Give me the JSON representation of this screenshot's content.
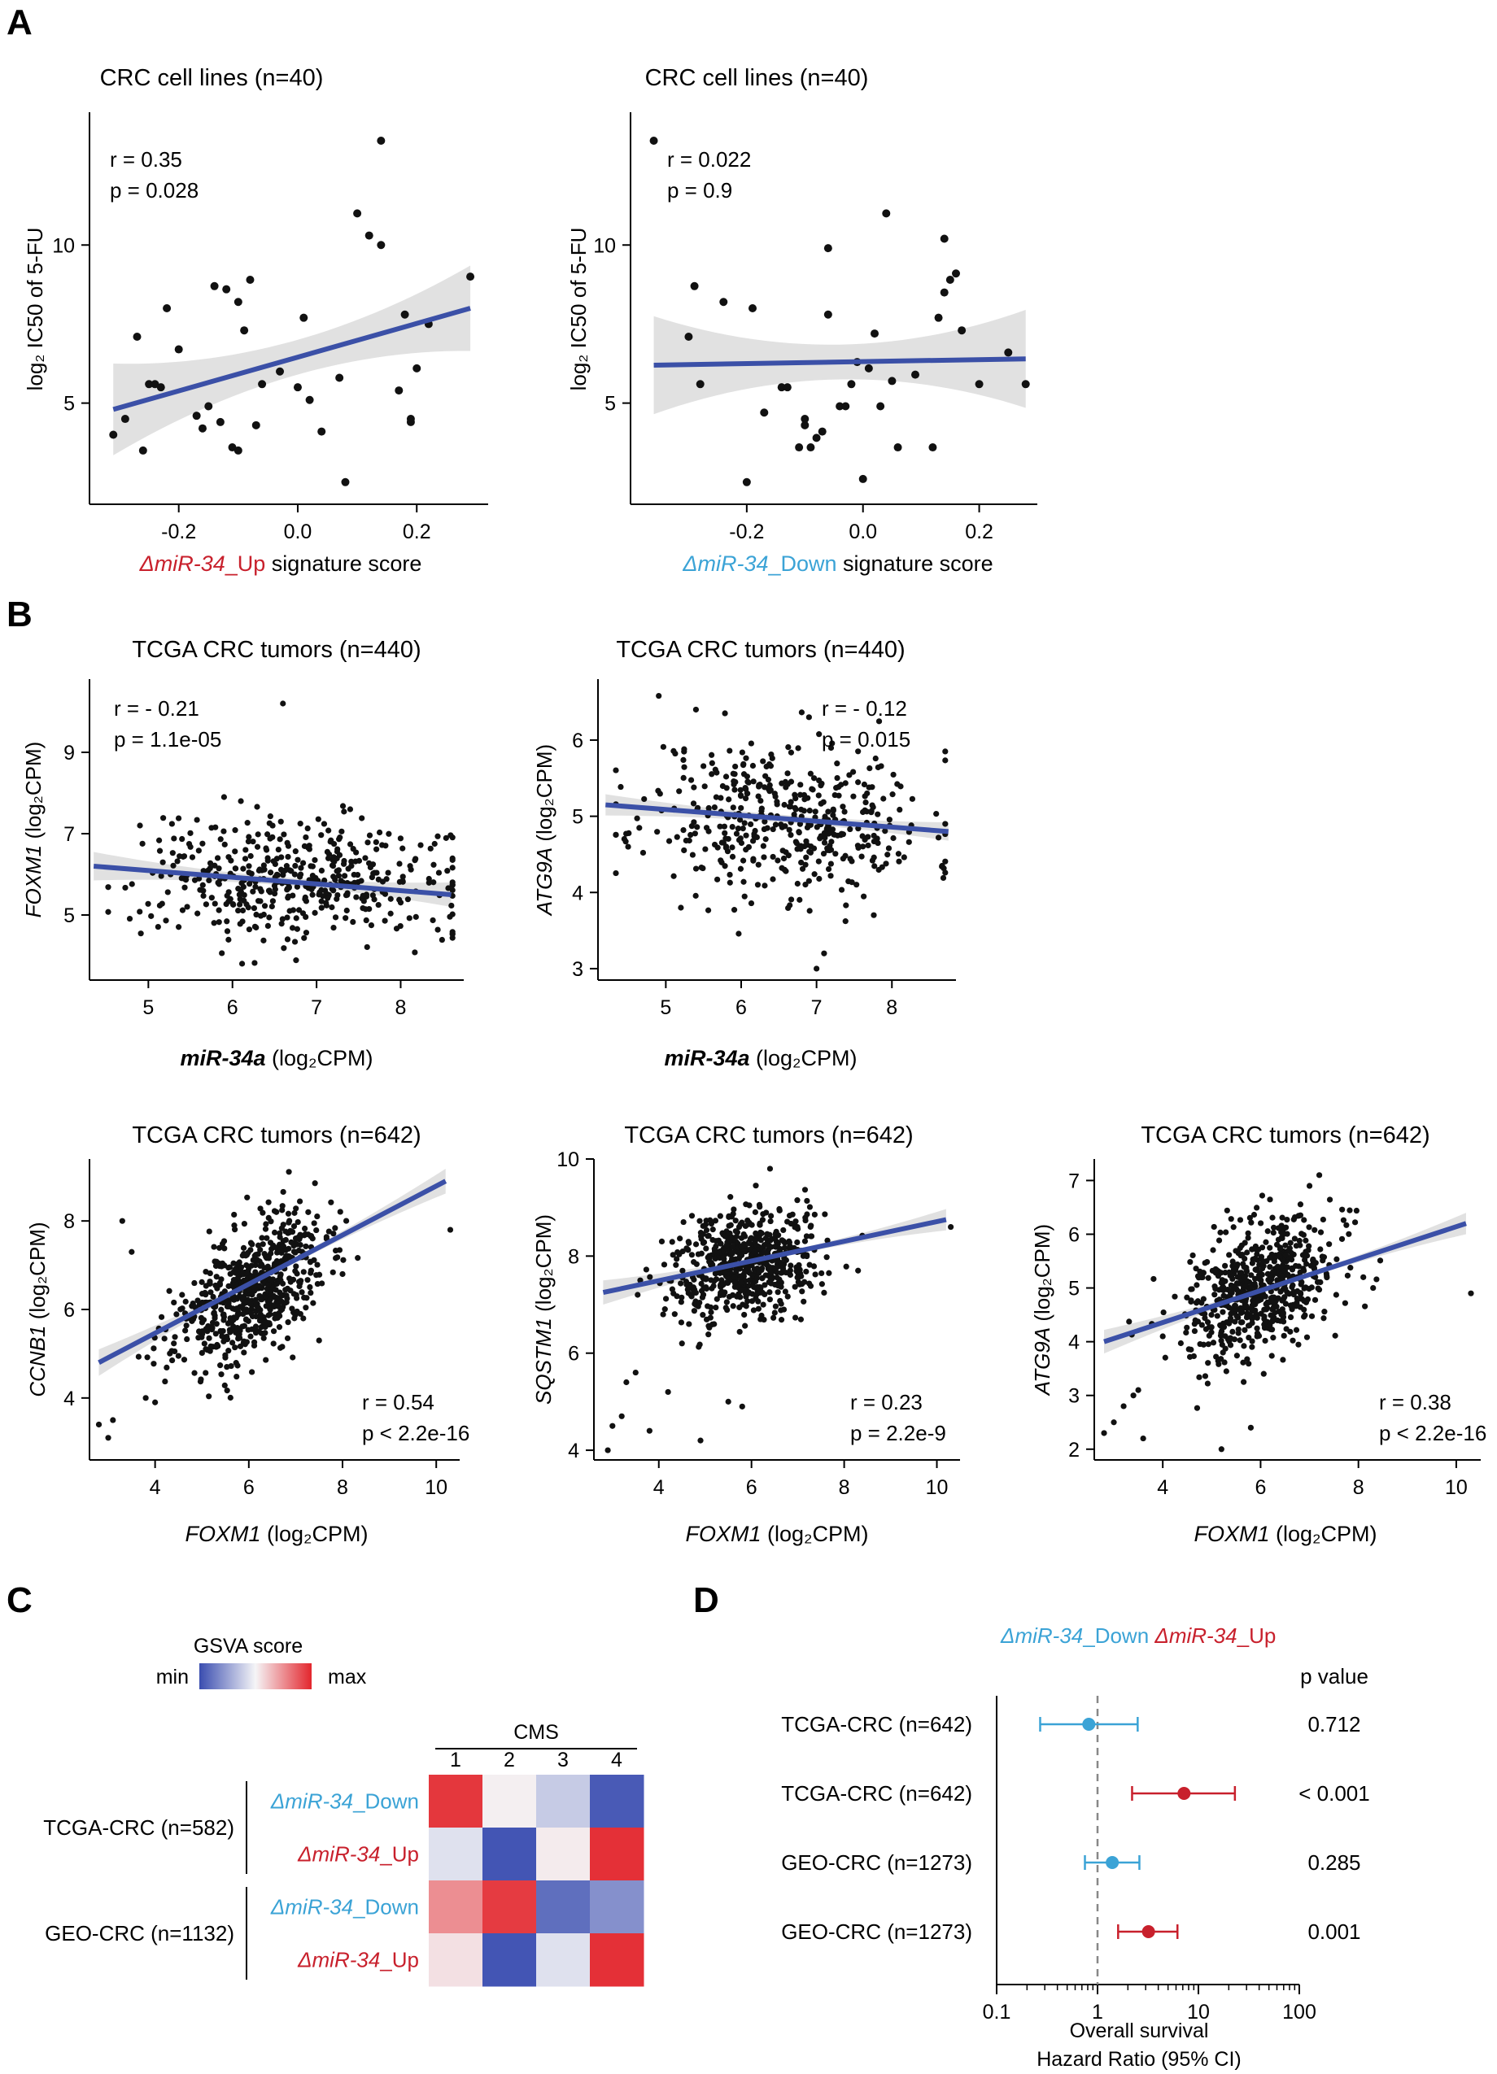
{
  "colors": {
    "line": "#3b50a7",
    "band": "#d7d7d7",
    "point": "#111111",
    "up": "#c8202c",
    "down": "#3ba3d6",
    "dash": "#888888",
    "hm_min": "#3a4db0",
    "hm_mid": "#f5f5f7",
    "hm_max": "#e3262d"
  },
  "panels": {
    "A": {
      "label": "A"
    },
    "B": {
      "label": "B"
    },
    "C": {
      "label": "C",
      "legend_title": "GSVA score",
      "legend_min": "min",
      "legend_max": "max",
      "cms_title": "CMS",
      "groups": [
        "TCGA-CRC (n=582)",
        "GEO-CRC (n=1132)"
      ]
    },
    "D": {
      "label": "D",
      "pvalue_title": "p value",
      "xlabel_1": "Overall survival",
      "xlabel_2": "Hazard Ratio (95% CI)"
    }
  },
  "label_parts": {
    "mir_prefix": "ΔmiR-34",
    "up_suffix": "_Up",
    "down_suffix": "_Down",
    "signature_score": " signature score",
    "log2_cpm": " (log₂CPM)",
    "log2_ic50": "log₂ IC50 of 5-FU"
  },
  "chart_data": [
    {
      "id": "A1",
      "type": "scatter",
      "title": "CRC cell lines (n=40)",
      "xlabel": "ΔmiR-34_Up signature score",
      "ylabel": "log₂ IC50 of 5-FU",
      "xlim": [
        -0.35,
        0.32
      ],
      "ylim": [
        1.8,
        14.2
      ],
      "xticks": [
        -0.2,
        0.0,
        0.2
      ],
      "xtick_labels": [
        "-0.2",
        "0.0",
        "0.2"
      ],
      "yticks": [
        5,
        10
      ],
      "ytick_labels": [
        "5",
        "10"
      ],
      "stats": [
        "r = 0.35",
        "p = 0.028"
      ],
      "fit": {
        "x0": -0.31,
        "y0": 4.8,
        "x1": 0.29,
        "y1": 8.0,
        "band0": 1.45,
        "band_mid": 0.55,
        "band1": 1.35
      },
      "x": [
        -0.31,
        -0.29,
        -0.27,
        -0.26,
        -0.25,
        -0.24,
        -0.23,
        -0.22,
        -0.2,
        -0.17,
        -0.16,
        -0.15,
        -0.14,
        -0.13,
        -0.12,
        -0.11,
        -0.1,
        -0.1,
        -0.09,
        -0.08,
        -0.07,
        -0.06,
        -0.03,
        0.0,
        0.01,
        0.02,
        0.04,
        0.07,
        0.08,
        0.1,
        0.12,
        0.14,
        0.14,
        0.17,
        0.18,
        0.19,
        0.19,
        0.2,
        0.22,
        0.29
      ],
      "y": [
        4.0,
        4.5,
        7.1,
        3.5,
        5.6,
        5.6,
        5.5,
        8.0,
        6.7,
        4.6,
        4.2,
        4.9,
        8.7,
        4.4,
        8.6,
        3.6,
        3.5,
        8.2,
        7.3,
        8.9,
        4.3,
        5.6,
        6.0,
        5.5,
        7.7,
        5.1,
        4.1,
        5.8,
        2.5,
        11.0,
        10.3,
        10.0,
        13.3,
        5.4,
        7.8,
        4.5,
        4.4,
        6.1,
        7.5,
        9.0
      ]
    },
    {
      "id": "A2",
      "type": "scatter",
      "title": "CRC cell lines (n=40)",
      "xlabel": "ΔmiR-34_Down signature score",
      "ylabel": "log₂ IC50 of 5-FU",
      "xlim": [
        -0.4,
        0.3
      ],
      "ylim": [
        1.8,
        14.2
      ],
      "xticks": [
        -0.2,
        0.0,
        0.2
      ],
      "xtick_labels": [
        "-0.2",
        "0.0",
        "0.2"
      ],
      "yticks": [
        5,
        10
      ],
      "ytick_labels": [
        "5",
        "10"
      ],
      "stats": [
        "r = 0.022",
        "p = 0.9"
      ],
      "fit": {
        "x0": -0.36,
        "y0": 6.2,
        "x1": 0.28,
        "y1": 6.4,
        "band0": 1.55,
        "band_mid": 0.55,
        "band1": 1.55
      },
      "x": [
        -0.36,
        -0.3,
        -0.29,
        -0.28,
        -0.24,
        -0.2,
        -0.19,
        -0.17,
        -0.14,
        -0.13,
        -0.11,
        -0.1,
        -0.1,
        -0.09,
        -0.08,
        -0.07,
        -0.06,
        -0.06,
        -0.04,
        -0.03,
        -0.02,
        -0.01,
        0.0,
        0.01,
        0.02,
        0.03,
        0.04,
        0.05,
        0.06,
        0.09,
        0.12,
        0.13,
        0.14,
        0.14,
        0.15,
        0.16,
        0.17,
        0.2,
        0.25,
        0.28
      ],
      "y": [
        13.3,
        7.1,
        8.7,
        5.6,
        8.2,
        2.5,
        8.0,
        4.7,
        5.5,
        5.5,
        3.6,
        4.3,
        4.5,
        3.6,
        3.9,
        4.1,
        7.8,
        9.9,
        4.9,
        4.9,
        5.6,
        6.3,
        2.6,
        6.1,
        7.2,
        4.9,
        11.0,
        5.7,
        3.6,
        5.9,
        3.6,
        7.7,
        8.5,
        10.2,
        8.9,
        9.1,
        7.3,
        5.6,
        6.6,
        5.6
      ]
    },
    {
      "id": "B1",
      "type": "scatter",
      "title": "TCGA CRC tumors (n=440)",
      "xlabel": "miR-34a (log₂CPM)",
      "ylabel": "FOXM1 (log₂CPM)",
      "xlim": [
        4.3,
        8.75
      ],
      "ylim": [
        3.4,
        10.8
      ],
      "xticks": [
        5,
        6,
        7,
        8
      ],
      "xtick_labels": [
        "5",
        "6",
        "7",
        "8"
      ],
      "yticks": [
        5,
        7,
        9
      ],
      "ytick_labels": [
        "5",
        "7",
        "9"
      ],
      "stats": [
        "r = - 0.21",
        "p = 1.1e-05"
      ],
      "fit": {
        "x0": 4.35,
        "y0": 6.2,
        "x1": 8.6,
        "y1": 5.5,
        "band0": 0.35,
        "band_mid": 0.1,
        "band1": 0.3
      },
      "cloud": {
        "n": 440,
        "cx": 6.8,
        "cy": 5.85,
        "sx": 0.95,
        "sy": 0.75,
        "seed": 7
      },
      "x": [
        6.6,
        5.9,
        6.1,
        7.4,
        4.9
      ],
      "y": [
        10.2,
        7.9,
        7.8,
        7.6,
        7.2
      ]
    },
    {
      "id": "B2",
      "type": "scatter",
      "title": "TCGA CRC tumors (n=440)",
      "xlabel": "miR-34a (log₂CPM)",
      "ylabel": "ATG9A (log₂CPM)",
      "xlim": [
        4.1,
        8.85
      ],
      "ylim": [
        2.85,
        6.8
      ],
      "xticks": [
        5,
        6,
        7,
        8
      ],
      "xtick_labels": [
        "5",
        "6",
        "7",
        "8"
      ],
      "yticks": [
        3,
        4,
        5,
        6
      ],
      "ytick_labels": [
        "3",
        "4",
        "5",
        "6"
      ],
      "stats": [
        "r = - 0.12",
        "p = 0.015"
      ],
      "fit": {
        "x0": 4.2,
        "y0": 5.15,
        "x1": 8.75,
        "y1": 4.8,
        "band0": 0.14,
        "band_mid": 0.05,
        "band1": 0.12
      },
      "cloud": {
        "n": 440,
        "cx": 6.6,
        "cy": 4.97,
        "sx": 0.95,
        "sy": 0.52,
        "seed": 11
      },
      "x": [
        5.4,
        6.9,
        4.5,
        5.2,
        7.0,
        7.1
      ],
      "y": [
        6.4,
        6.3,
        4.6,
        3.8,
        3.0,
        3.2
      ]
    },
    {
      "id": "B3",
      "type": "scatter",
      "title": "TCGA CRC tumors (n=642)",
      "xlabel": "FOXM1 (log₂CPM)",
      "ylabel": "CCNB1 (log₂CPM)",
      "xlim": [
        2.6,
        10.5
      ],
      "ylim": [
        2.6,
        9.4
      ],
      "xticks": [
        4,
        6,
        8,
        10
      ],
      "xtick_labels": [
        "4",
        "6",
        "8",
        "10"
      ],
      "yticks": [
        4,
        6,
        8
      ],
      "ytick_labels": [
        "4",
        "6",
        "8"
      ],
      "stats": [
        "r = 0.54",
        "p < 2.2e-16"
      ],
      "fit": {
        "x0": 2.8,
        "y0": 4.8,
        "x1": 10.2,
        "y1": 8.9,
        "band0": 0.3,
        "band_mid": 0.06,
        "band1": 0.28
      },
      "cloud": {
        "n": 642,
        "cx": 6.0,
        "cy": 6.35,
        "sx": 0.8,
        "sy": 0.85,
        "rho": 0.54,
        "seed": 23
      },
      "x": [
        2.8,
        3.0,
        3.1,
        3.3,
        3.8,
        10.3,
        8.0,
        7.5,
        3.5,
        4.0
      ],
      "y": [
        3.4,
        3.1,
        3.5,
        8.0,
        4.0,
        7.8,
        6.8,
        5.3,
        7.3,
        3.9
      ]
    },
    {
      "id": "B4",
      "type": "scatter",
      "title": "TCGA CRC tumors (n=642)",
      "xlabel": "FOXM1 (log₂CPM)",
      "ylabel": "SQSTM1 (log₂CPM)",
      "xlim": [
        2.6,
        10.5
      ],
      "ylim": [
        3.8,
        10.0
      ],
      "xticks": [
        4,
        6,
        8,
        10
      ],
      "xtick_labels": [
        "4",
        "6",
        "8",
        "10"
      ],
      "yticks": [
        4,
        6,
        8,
        10
      ],
      "ytick_labels": [
        "4",
        "6",
        "8",
        "10"
      ],
      "stats": [
        "r = 0.23",
        "p = 2.2e-9"
      ],
      "fit": {
        "x0": 2.8,
        "y0": 7.25,
        "x1": 10.2,
        "y1": 8.75,
        "band0": 0.25,
        "band_mid": 0.05,
        "band1": 0.22
      },
      "cloud": {
        "n": 642,
        "cx": 5.9,
        "cy": 7.85,
        "sx": 0.78,
        "sy": 0.55,
        "rho": 0.23,
        "seed": 31
      },
      "x": [
        2.9,
        3.0,
        3.2,
        3.3,
        3.5,
        3.6,
        4.2,
        4.5,
        4.9,
        5.5,
        5.8,
        6.4,
        10.3,
        8.3,
        3.8
      ],
      "y": [
        4.0,
        4.5,
        4.7,
        5.4,
        5.6,
        7.5,
        5.2,
        6.2,
        4.2,
        5.0,
        4.9,
        9.8,
        8.6,
        7.7,
        4.4
      ]
    },
    {
      "id": "B5",
      "type": "scatter",
      "title": "TCGA CRC tumors (n=642)",
      "xlabel": "FOXM1 (log₂CPM)",
      "ylabel": "ATG9A (log₂CPM)",
      "xlim": [
        2.6,
        10.5
      ],
      "ylim": [
        1.8,
        7.4
      ],
      "xticks": [
        4,
        6,
        8,
        10
      ],
      "xtick_labels": [
        "4",
        "6",
        "8",
        "10"
      ],
      "yticks": [
        2,
        3,
        4,
        5,
        6,
        7
      ],
      "ytick_labels": [
        "2",
        "3",
        "4",
        "5",
        "6",
        "7"
      ],
      "stats": [
        "r = 0.38",
        "p < 2.2e-16"
      ],
      "fit": {
        "x0": 2.8,
        "y0": 4.0,
        "x1": 10.2,
        "y1": 6.2,
        "band0": 0.22,
        "band_mid": 0.04,
        "band1": 0.2
      },
      "cloud": {
        "n": 642,
        "cx": 5.95,
        "cy": 4.95,
        "sx": 0.78,
        "sy": 0.62,
        "rho": 0.38,
        "seed": 47
      },
      "x": [
        2.8,
        3.0,
        3.2,
        3.4,
        3.5,
        3.6,
        4.0,
        10.3,
        8.3,
        8.1,
        7.2,
        7.0,
        5.2,
        5.8
      ],
      "y": [
        2.3,
        2.5,
        2.8,
        3.0,
        3.1,
        2.2,
        4.1,
        4.9,
        5.0,
        5.2,
        7.1,
        6.9,
        2.0,
        2.4
      ]
    },
    {
      "id": "C",
      "type": "heatmap",
      "title": "CMS",
      "columns": [
        "1",
        "2",
        "3",
        "4"
      ],
      "rows": [
        {
          "name": "ΔmiR-34_Down",
          "signature": "Down",
          "values": [
            0.92,
            0.03,
            -0.25,
            -0.92
          ]
        },
        {
          "name": "ΔmiR-34_Up",
          "signature": "Up",
          "values": [
            -0.12,
            -0.95,
            0.05,
            0.95
          ]
        },
        {
          "name": "ΔmiR-34_Down",
          "signature": "Down",
          "values": [
            0.5,
            0.9,
            -0.8,
            -0.6
          ]
        },
        {
          "name": "ΔmiR-34_Up",
          "signature": "Up",
          "values": [
            0.1,
            -0.95,
            -0.12,
            0.95
          ]
        }
      ]
    },
    {
      "id": "D",
      "type": "forest",
      "title": "ΔmiR-34_Down  ΔmiR-34_Up",
      "xscale": "log",
      "xlim": [
        0.1,
        100
      ],
      "xticks": [
        0.1,
        1,
        10,
        100
      ],
      "xtick_labels": [
        "0.1",
        "1",
        "10",
        "100"
      ],
      "reference": 1,
      "rows": [
        {
          "label": "TCGA-CRC (n=642)",
          "signature": "Down",
          "hr": 0.82,
          "lo": 0.27,
          "hi": 2.5,
          "p": "0.712"
        },
        {
          "label": "TCGA-CRC (n=642)",
          "signature": "Up",
          "hr": 7.2,
          "lo": 2.2,
          "hi": 23.0,
          "p": "< 0.001"
        },
        {
          "label": "GEO-CRC (n=1273)",
          "signature": "Down",
          "hr": 1.4,
          "lo": 0.75,
          "hi": 2.6,
          "p": "0.285"
        },
        {
          "label": "GEO-CRC (n=1273)",
          "signature": "Up",
          "hr": 3.2,
          "lo": 1.6,
          "hi": 6.2,
          "p": "0.001"
        }
      ]
    }
  ]
}
